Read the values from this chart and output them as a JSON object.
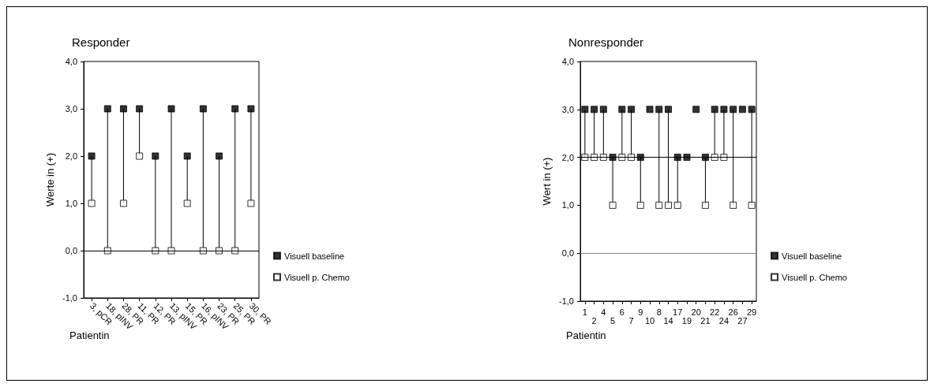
{
  "chart_data": [
    {
      "type": "scatter",
      "title": "Responder",
      "xlabel": "Patientin",
      "ylabel": "Werte in (+)",
      "categories": [
        "3, pCR",
        "18, pINV",
        "28, PR",
        "11, PR",
        "12, PR",
        "13, pINV",
        "15, PR",
        "16, pINV",
        "23, PR",
        "25, PR",
        "30, PR"
      ],
      "series": [
        {
          "name": "Visuell baseline",
          "color": "#000000",
          "values": [
            2,
            3,
            3,
            3,
            2,
            3,
            2,
            3,
            2,
            3,
            3
          ]
        },
        {
          "name": "Visuell p. Chemo",
          "color": "#ffffff",
          "values": [
            1,
            0,
            1,
            2,
            0,
            0,
            1,
            0,
            0,
            0,
            1
          ]
        }
      ],
      "ylim": [
        -1,
        4
      ],
      "yticks": [
        {
          "value": -1,
          "label": "-1,0"
        },
        {
          "value": 0,
          "label": "0,0"
        },
        {
          "value": 1,
          "label": "1,0"
        },
        {
          "value": 2,
          "label": "2,0"
        },
        {
          "value": 3,
          "label": "3,0"
        },
        {
          "value": 4,
          "label": "4,0"
        }
      ],
      "ref_lines": [
        {
          "axis": "y",
          "value": 0,
          "color": "#000000"
        }
      ],
      "marker": "square",
      "legend": "right",
      "grid": false
    },
    {
      "type": "scatter",
      "title": "Nonresponder",
      "xlabel": "Patientin",
      "ylabel": "Wert in (+)",
      "categories": [
        "1",
        "2",
        "4",
        "5",
        "6",
        "7",
        "9",
        "10",
        "8",
        "14",
        "17",
        "19",
        "20",
        "21",
        "22",
        "24",
        "26",
        "27",
        "29"
      ],
      "series": [
        {
          "name": "Visuell baseline",
          "color": "#000000",
          "values": [
            3,
            3,
            3,
            2,
            3,
            3,
            2,
            3,
            3,
            3,
            2,
            2,
            3,
            2,
            3,
            3,
            3,
            3,
            3
          ]
        },
        {
          "name": "Visuell p. Chemo",
          "color": "#ffffff",
          "values": [
            2,
            2,
            2,
            1,
            2,
            2,
            1,
            null,
            1,
            1,
            1,
            null,
            null,
            1,
            2,
            2,
            1,
            null,
            1
          ]
        }
      ],
      "ylim": [
        -1,
        4
      ],
      "yticks": [
        {
          "value": -1,
          "label": "-1,0"
        },
        {
          "value": 0,
          "label": "0,0"
        },
        {
          "value": 1,
          "label": "1,0"
        },
        {
          "value": 2,
          "label": "2,0"
        },
        {
          "value": 3,
          "label": "3,0"
        },
        {
          "value": 4,
          "label": "4,0"
        }
      ],
      "ref_lines": [
        {
          "axis": "y",
          "value": 2,
          "color": "#000000"
        },
        {
          "axis": "y",
          "value": 0,
          "color": "#808080"
        }
      ],
      "marker": "square",
      "legend": "right",
      "grid": false
    }
  ]
}
